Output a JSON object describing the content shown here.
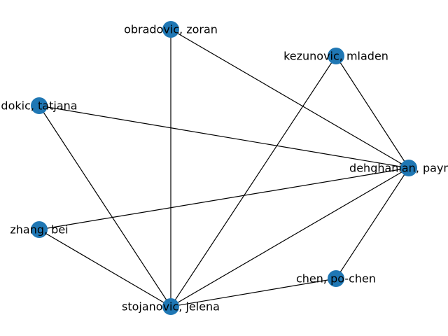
{
  "graph": {
    "node_color": "#1f77b4",
    "edge_color": "#000000",
    "nodes": [
      {
        "id": "obradovic",
        "label": "obradovic, zoran"
      },
      {
        "id": "kezunovic",
        "label": "kezunovic, mladen"
      },
      {
        "id": "dokic",
        "label": "dokic, tatjana"
      },
      {
        "id": "dehghanian",
        "label": "dehghanian, payman"
      },
      {
        "id": "zhang",
        "label": "zhang, bei"
      },
      {
        "id": "chen",
        "label": "chen, po-chen"
      },
      {
        "id": "stojanovic",
        "label": "stojanovic, jelena"
      }
    ],
    "edges": [
      [
        "obradovic",
        "dehghanian"
      ],
      [
        "obradovic",
        "stojanovic"
      ],
      [
        "kezunovic",
        "dehghanian"
      ],
      [
        "kezunovic",
        "stojanovic"
      ],
      [
        "dokic",
        "dehghanian"
      ],
      [
        "dokic",
        "stojanovic"
      ],
      [
        "dehghanian",
        "zhang"
      ],
      [
        "dehghanian",
        "chen"
      ],
      [
        "dehghanian",
        "stojanovic"
      ],
      [
        "zhang",
        "stojanovic"
      ],
      [
        "chen",
        "stojanovic"
      ]
    ]
  }
}
